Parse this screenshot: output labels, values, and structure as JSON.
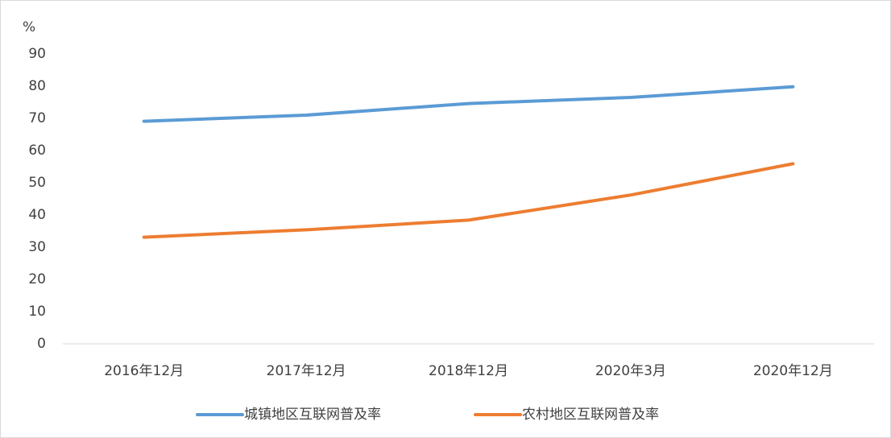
{
  "chart_data": {
    "type": "line",
    "ylabel": "%",
    "categories": [
      "2016年12月",
      "2017年12月",
      "2018年12月",
      "2020年3月",
      "2020年12月"
    ],
    "series": [
      {
        "name": "城镇地区互联网普及率",
        "color": "#5b9bd5",
        "values": [
          69.1,
          71.0,
          74.6,
          76.5,
          79.8
        ]
      },
      {
        "name": "农村地区互联网普及率",
        "color": "#ed7d31",
        "values": [
          33.1,
          35.4,
          38.4,
          46.2,
          55.9
        ]
      }
    ],
    "ylim": [
      0,
      90
    ],
    "yticks": [
      0,
      10,
      20,
      30,
      40,
      50,
      60,
      70,
      80,
      90
    ],
    "grid": false,
    "legend": "bottom"
  }
}
